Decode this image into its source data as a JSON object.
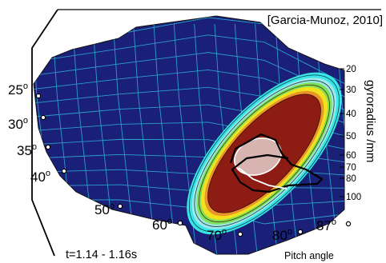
{
  "chart_data": {
    "type": "heatmap",
    "title": "[Garcia-Munoz, 2010]",
    "time_label": "t=1.14 - 1.16s",
    "xlabel": "Pitch angle",
    "ylabel": "gyroradius  /mm",
    "pitch_ticks": [
      "25",
      "30",
      "35",
      "40",
      "50",
      "60",
      "70",
      "80",
      "87"
    ],
    "degree_symbol": "o",
    "gyroradius_ticks": [
      "20",
      "30",
      "40",
      "50",
      "60",
      "70",
      "80",
      "100"
    ],
    "peak_region": {
      "pitch_angle_deg": [
        62,
        84
      ],
      "gyroradius_mm": [
        25,
        100
      ]
    },
    "colors": {
      "background": "#1a1f78",
      "grid": "#2fb6d9",
      "peak": "#8c1c14",
      "yellow": "#f2e21e",
      "green": "#7fe05a",
      "cyan": "#39e6e6",
      "highlight": "#d7b4b0"
    }
  }
}
